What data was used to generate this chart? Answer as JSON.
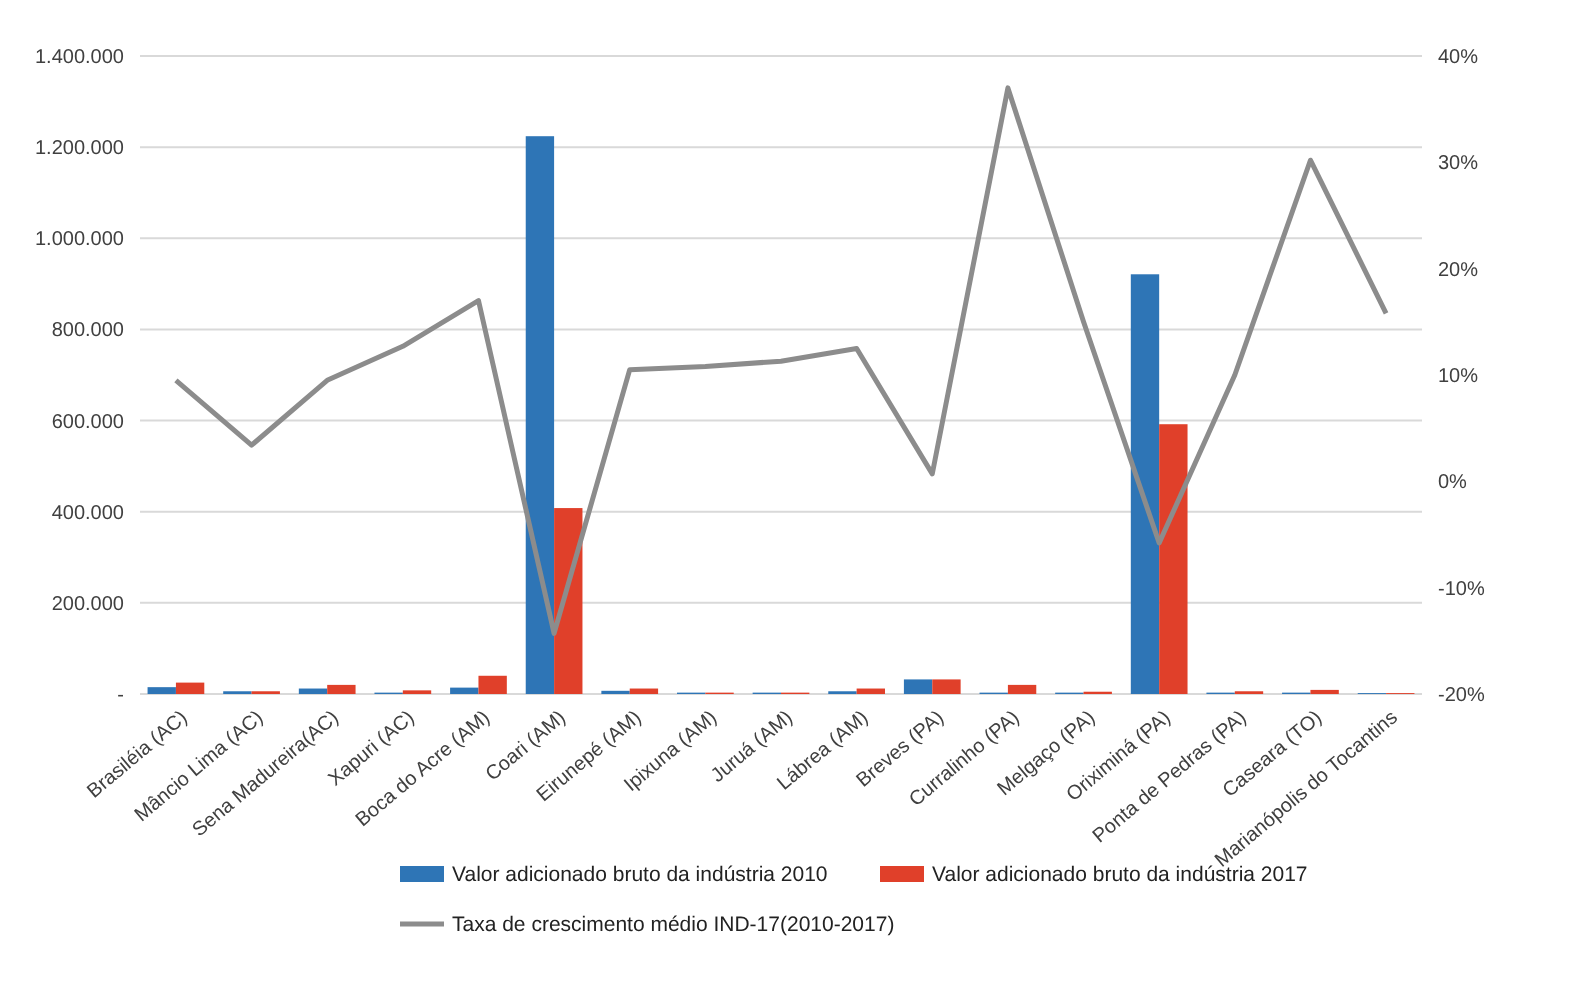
{
  "chart_data": {
    "type": "bar",
    "categories": [
      "Brasiléia (AC)",
      "Mâncio Lima (AC)",
      "Sena Madureira(AC)",
      "Xapuri (AC)",
      "Boca do Acre (AM)",
      "Coari (AM)",
      "Eirunepé (AM)",
      "Ipixuna (AM)",
      "Juruá (AM)",
      "Lábrea (AM)",
      "Breves (PA)",
      "Curralinho (PA)",
      "Melgaço (PA)",
      "Oriximiná (PA)",
      "Ponta de Pedras (PA)",
      "Caseara (TO)",
      "Marianópolis do Tocantins"
    ],
    "series": [
      {
        "name": "Valor adicionado bruto da indústria 2010",
        "color": "#2e75b6",
        "values": [
          15000,
          6000,
          12000,
          3000,
          14000,
          1224000,
          7000,
          3000,
          3000,
          6000,
          32000,
          3000,
          3000,
          921000,
          3000,
          3000,
          2000
        ]
      },
      {
        "name": "Valor adicionado bruto da indústria 2017",
        "color": "#e0402a",
        "values": [
          25000,
          6000,
          20000,
          8000,
          40000,
          408000,
          12000,
          3000,
          3000,
          12000,
          32000,
          20000,
          5000,
          592000,
          6000,
          9000,
          2000
        ]
      },
      {
        "name": "Taxa de crescimento médio IND-17(2010-2017)",
        "type": "line",
        "axis": "y2",
        "color": "#8c8c8c",
        "values": [
          9.5,
          3.4,
          9.5,
          12.7,
          17,
          -14.3,
          10.5,
          10.8,
          11.3,
          12.5,
          0.7,
          37,
          15,
          -5.8,
          10,
          30.2,
          15.8
        ]
      }
    ],
    "ylim": [
      0,
      1400000
    ],
    "yticks": [
      {
        "value": 0,
        "label": "-"
      },
      {
        "value": 200000,
        "label": "200.000"
      },
      {
        "value": 400000,
        "label": "400.000"
      },
      {
        "value": 600000,
        "label": "600.000"
      },
      {
        "value": 800000,
        "label": "800.000"
      },
      {
        "value": 1000000,
        "label": "1.000.000"
      },
      {
        "value": 1200000,
        "label": "1.200.000"
      },
      {
        "value": 1400000,
        "label": "1.400.000"
      }
    ],
    "y2lim": [
      -20,
      40
    ],
    "y2ticks": [
      {
        "value": -20,
        "label": "-20%"
      },
      {
        "value": -10,
        "label": "-10%"
      },
      {
        "value": 0,
        "label": "0%"
      },
      {
        "value": 10,
        "label": "10%"
      },
      {
        "value": 20,
        "label": "20%"
      },
      {
        "value": 30,
        "label": "30%"
      },
      {
        "value": 40,
        "label": "40%"
      }
    ],
    "grid": "y",
    "legend": "bottom",
    "marker": "none",
    "line_style": "solid"
  }
}
